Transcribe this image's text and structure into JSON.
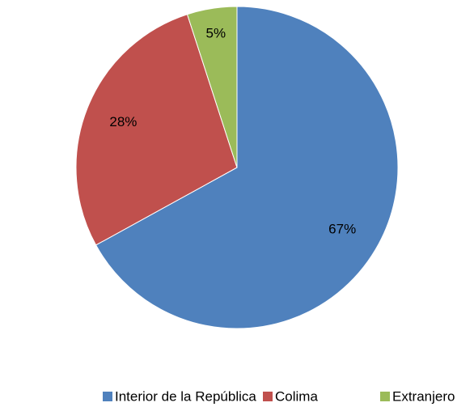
{
  "chart_data": {
    "type": "pie",
    "categories": [
      "Interior de la República",
      "Colima",
      "Extranjero"
    ],
    "values": [
      67,
      28,
      5
    ],
    "value_labels": [
      "67%",
      "28%",
      "5%"
    ],
    "colors": [
      "#4f81bd",
      "#c0504d",
      "#9bbb59"
    ],
    "legend": "bottom"
  }
}
